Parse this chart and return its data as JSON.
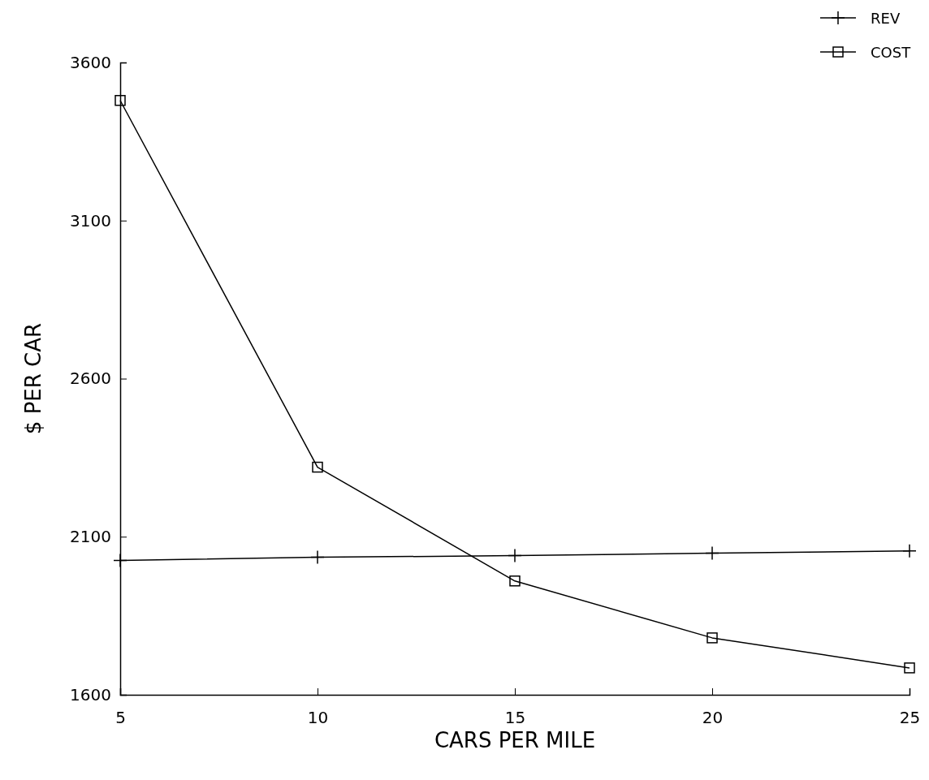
{
  "chart_data": {
    "type": "line",
    "xlabel": "CARS PER MILE",
    "ylabel": "$ PER CAR",
    "x": [
      5,
      10,
      15,
      20,
      25
    ],
    "xlim": [
      5,
      25
    ],
    "xticks": [
      5,
      10,
      15,
      20,
      25
    ],
    "ylim": [
      1600,
      3600
    ],
    "yticks": [
      1600,
      2100,
      2600,
      3100,
      3600
    ],
    "grid": false,
    "legend": "top right",
    "series": [
      {
        "name": "REV",
        "color": "#000000",
        "marker": "cross",
        "values": [
          2025,
          2035,
          2040,
          2048,
          2055
        ]
      },
      {
        "name": "COST",
        "color": "#000000",
        "marker": "square",
        "values": [
          3480,
          2320,
          1960,
          1780,
          1685
        ]
      }
    ]
  }
}
